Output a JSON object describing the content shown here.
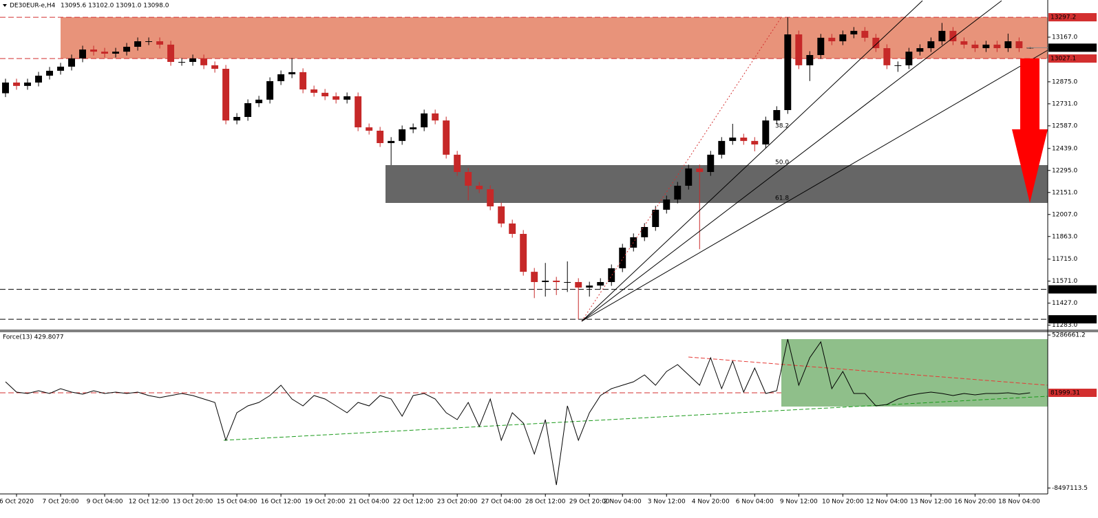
{
  "chart_data": [
    {
      "type": "candlestick",
      "title": "DE30EUR-e,H4",
      "subtitle": "13095.6 13102.0 13091.0 13098.0",
      "up_color": "#000000",
      "down_color": "#c62828",
      "open": [
        12800,
        12870,
        12848,
        12870,
        12915,
        12947,
        12974,
        13028,
        13086,
        13072,
        13059,
        13072,
        13104,
        13140,
        13140,
        13118,
        13005,
        13005,
        13028,
        12983,
        12960,
        12622,
        12645,
        12735,
        12758,
        12879,
        12924,
        12938,
        12825,
        12803,
        12780,
        12758,
        12780,
        12577,
        12555,
        12474,
        12488,
        12564,
        12577,
        12668,
        12622,
        12398,
        12285,
        12195,
        12172,
        12060,
        11948,
        11880,
        11632,
        11565,
        11574,
        11565,
        11565,
        11529,
        11542,
        11565,
        11655,
        11790,
        11858,
        11925,
        12038,
        12105,
        12195,
        12308,
        12285,
        12398,
        12488,
        12510,
        12488,
        12465,
        12622,
        12690,
        13185,
        12983,
        13050,
        13163,
        13140,
        13185,
        13208,
        13163,
        13095,
        12983,
        12983,
        13072,
        13095,
        13140,
        13208,
        13140,
        13118,
        13095,
        13118,
        13095,
        13140,
        13095.6
      ],
      "high": [
        12895,
        12895,
        12895,
        12940,
        12972,
        12999,
        13053,
        13111,
        13111,
        13097,
        13097,
        13129,
        13165,
        13165,
        13165,
        13143,
        13030,
        13053,
        13053,
        13008,
        12985,
        12670,
        12760,
        12783,
        12904,
        12949,
        13030,
        12963,
        12850,
        12828,
        12805,
        12805,
        12805,
        12602,
        12580,
        12513,
        12589,
        12602,
        12693,
        12693,
        12647,
        12423,
        12310,
        12220,
        12197,
        12085,
        11973,
        11905,
        11657,
        11690,
        11599,
        11700,
        11590,
        11567,
        11590,
        11680,
        11815,
        11883,
        11950,
        12063,
        12130,
        12220,
        12333,
        12333,
        12423,
        12513,
        12600,
        12535,
        12513,
        12647,
        12715,
        13297,
        13210,
        13075,
        13188,
        13188,
        13210,
        13233,
        13233,
        13188,
        13120,
        13008,
        13097,
        13120,
        13165,
        13260,
        13233,
        13165,
        13143,
        13143,
        13143,
        13190,
        13165,
        13102
      ],
      "low": [
        12775,
        12823,
        12823,
        12845,
        12890,
        12922,
        12949,
        13003,
        13047,
        13034,
        13034,
        13047,
        13079,
        13115,
        13093,
        12980,
        12980,
        12980,
        12958,
        12935,
        12597,
        12597,
        12620,
        12710,
        12733,
        12854,
        12899,
        12800,
        12778,
        12755,
        12733,
        12733,
        12552,
        12530,
        12449,
        12330,
        12463,
        12539,
        12552,
        12597,
        12373,
        12260,
        12100,
        12147,
        12035,
        11923,
        11855,
        11607,
        11460,
        11470,
        11480,
        11500,
        11321,
        11470,
        11517,
        11540,
        11630,
        11765,
        11833,
        11900,
        12013,
        12080,
        12170,
        11780,
        12260,
        12373,
        12463,
        12463,
        12420,
        12440,
        12597,
        12665,
        12958,
        12880,
        13025,
        13115,
        13115,
        13160,
        13138,
        13070,
        12958,
        12940,
        12958,
        13047,
        13070,
        13115,
        13115,
        13093,
        13070,
        13070,
        13070,
        13070,
        13070,
        13091
      ],
      "close": [
        12870,
        12848,
        12870,
        12915,
        12947,
        12974,
        13028,
        13086,
        13072,
        13059,
        13072,
        13104,
        13140,
        13140,
        13118,
        13005,
        13005,
        13028,
        12983,
        12960,
        12622,
        12645,
        12735,
        12758,
        12879,
        12924,
        12938,
        12825,
        12803,
        12780,
        12758,
        12780,
        12577,
        12555,
        12474,
        12488,
        12564,
        12577,
        12668,
        12622,
        12398,
        12285,
        12195,
        12172,
        12060,
        11948,
        11880,
        11632,
        11565,
        11574,
        11565,
        11565,
        11529,
        11542,
        11565,
        11655,
        11790,
        11858,
        11925,
        12038,
        12105,
        12195,
        12308,
        12285,
        12398,
        12488,
        12510,
        12488,
        12465,
        12622,
        12690,
        13185,
        12983,
        13050,
        13163,
        13140,
        13185,
        13208,
        13163,
        13095,
        12983,
        12983,
        13072,
        13095,
        13140,
        13208,
        13140,
        13118,
        13095,
        13118,
        13095,
        13140,
        13095,
        13098
      ],
      "xlim": [
        -0.5,
        94.6
      ],
      "xticks": [
        {
          "value": 1,
          "label": "6 Oct 2020"
        },
        {
          "value": 5,
          "label": "7 Oct 20:00"
        },
        {
          "value": 9,
          "label": "9 Oct 04:00"
        },
        {
          "value": 13,
          "label": "12 Oct 12:00"
        },
        {
          "value": 17,
          "label": "13 Oct 20:00"
        },
        {
          "value": 21,
          "label": "15 Oct 04:00"
        },
        {
          "value": 25,
          "label": "16 Oct 12:00"
        },
        {
          "value": 29,
          "label": "19 Oct 20:00"
        },
        {
          "value": 33,
          "label": "21 Oct 04:00"
        },
        {
          "value": 37,
          "label": "22 Oct 12:00"
        },
        {
          "value": 41,
          "label": "23 Oct 20:00"
        },
        {
          "value": 45,
          "label": "27 Oct 04:00"
        },
        {
          "value": 49,
          "label": "28 Oct 12:00"
        },
        {
          "value": 53,
          "label": "29 Oct 20:00"
        },
        {
          "value": 56,
          "label": "2 Nov 04:00"
        },
        {
          "value": 60,
          "label": "3 Nov 12:00"
        },
        {
          "value": 64,
          "label": "4 Nov 20:00"
        },
        {
          "value": 68,
          "label": "6 Nov 04:00"
        },
        {
          "value": 72,
          "label": "9 Nov 12:00"
        },
        {
          "value": 76,
          "label": "10 Nov 20:00"
        },
        {
          "value": 80,
          "label": "12 Nov 04:00"
        },
        {
          "value": 84,
          "label": "13 Nov 12:00"
        },
        {
          "value": 88,
          "label": "16 Nov 20:00"
        },
        {
          "value": 92,
          "label": "18 Nov 04:00"
        }
      ],
      "ylim": [
        11259,
        13405.5
      ],
      "yticks": [
        {
          "value": 13167,
          "label": "13167.0"
        },
        {
          "value": 12875,
          "label": "12875.0"
        },
        {
          "value": 12731,
          "label": "12731.0"
        },
        {
          "value": 12587,
          "label": "12587.0"
        },
        {
          "value": 12439,
          "label": "12439.0"
        },
        {
          "value": 12295,
          "label": "12295.0"
        },
        {
          "value": 12151,
          "label": "12151.0"
        },
        {
          "value": 12007,
          "label": "12007.0"
        },
        {
          "value": 11863,
          "label": "11863.0"
        },
        {
          "value": 11715,
          "label": "11715.0"
        },
        {
          "value": 11571,
          "label": "11571.0"
        },
        {
          "value": 11427,
          "label": "11427.0"
        },
        {
          "value": 11283,
          "label": "11283.0"
        }
      ],
      "levels": [
        {
          "value": 13297.2,
          "color": "#d32f2f"
        },
        {
          "value": 13027.1,
          "color": "#d32f2f"
        },
        {
          "value": 11517.1,
          "color": "#000000"
        },
        {
          "value": 11321.3,
          "color": "#000000"
        }
      ],
      "zone_color": "#e8937a",
      "current_price": {
        "value": 13098,
        "label": "13098.0",
        "color": "#000000"
      },
      "annotations": [
        "38.2",
        "50.0",
        "61.8"
      ]
    },
    {
      "type": "line",
      "title": "Force(13) 429.8077",
      "color": "#000000",
      "values": [
        1074000,
        144000,
        20000,
        268000,
        20000,
        454000,
        144000,
        -42000,
        268000,
        20000,
        144000,
        20000,
        144000,
        -166000,
        -352000,
        -166000,
        20000,
        -166000,
        -476000,
        -786000,
        -4196000,
        -1716000,
        -1096000,
        -786000,
        -166000,
        764000,
        -476000,
        -1096000,
        -166000,
        -476000,
        -1096000,
        -1716000,
        -786000,
        -1096000,
        -166000,
        -476000,
        -2026000,
        -166000,
        20000,
        -476000,
        -1716000,
        -2336000,
        -786000,
        -2956000,
        -476000,
        -4196000,
        -1716000,
        -2646000,
        -5436000,
        -2336000,
        -8226000,
        -1096000,
        -4196000,
        -1716000,
        -166000,
        454000,
        764000,
        1074000,
        1694000,
        764000,
        2004000,
        2624000,
        1694000,
        764000,
        3244000,
        454000,
        2934000,
        144000,
        2314000,
        20000,
        268000,
        4918000,
        764000,
        3244000,
        4670000,
        454000,
        2004000,
        20000,
        20000,
        -1096000,
        -972000,
        -476000,
        -166000,
        20000,
        144000,
        20000,
        -166000,
        20000,
        -104000,
        20000,
        20000,
        82000,
        -42000,
        82000
      ],
      "ylim": [
        -8908000,
        5476000
      ],
      "yticks": [
        5286661.2,
        -8497113.5
      ],
      "levels": [
        {
          "value": 81999.31,
          "color": "#d32f2f"
        }
      ]
    }
  ]
}
